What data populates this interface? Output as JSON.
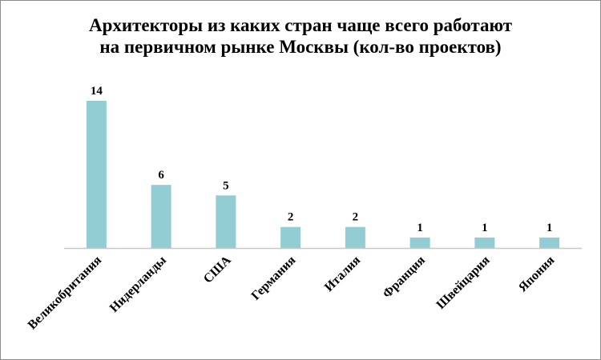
{
  "chart_data": {
    "type": "bar",
    "title_lines": [
      "Архитекторы из каких стран чаще всего работают",
      "на первичном рынке Москвы (кол-во проектов)"
    ],
    "categories": [
      "Великобритания",
      "Нидерланды",
      "США",
      "Германия",
      "Италия",
      "Франция",
      "Швейцария",
      "Япония"
    ],
    "values": [
      14,
      6,
      5,
      2,
      2,
      1,
      1,
      1
    ],
    "data_labels": [
      "14",
      "6",
      "5",
      "2",
      "2",
      "1",
      "1",
      "1"
    ],
    "xlabel": "",
    "ylabel": "",
    "ylim": [
      0,
      14
    ],
    "grid": false,
    "legend": "none",
    "bar_color": "#92CDD4",
    "axis_color": "#c8c8c8"
  }
}
